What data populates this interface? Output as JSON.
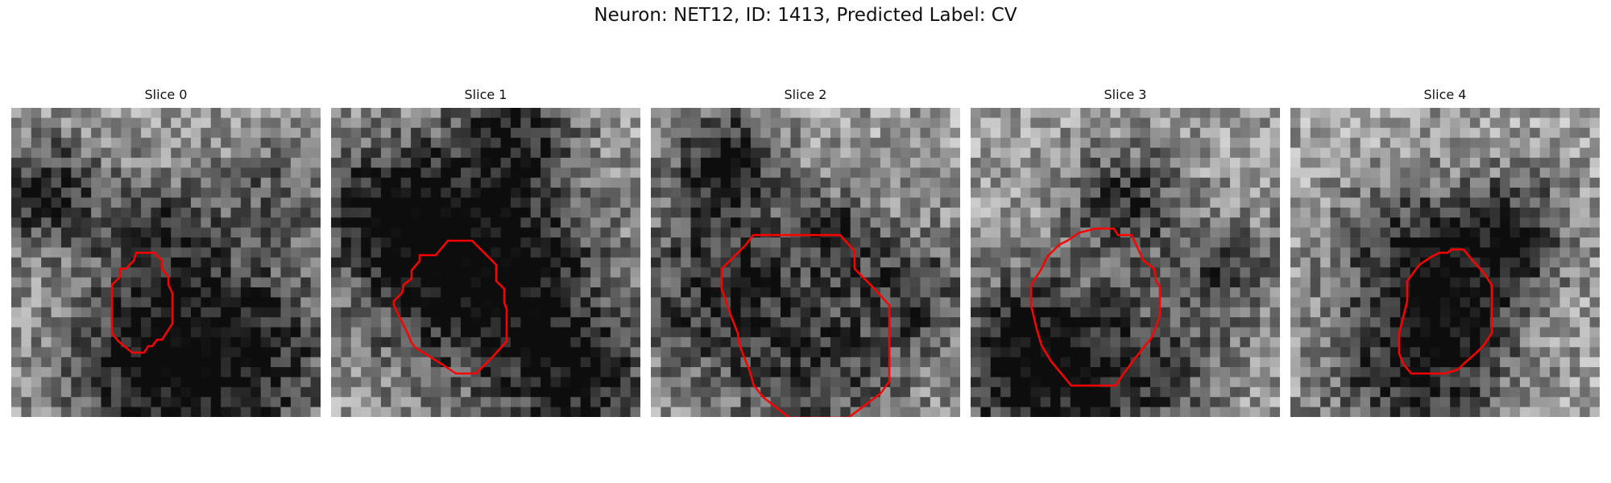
{
  "figure": {
    "title": "Neuron: NET12, ID: 1413, Predicted Label: CV",
    "outline_color": "#ff0000",
    "colormap": "grayscale",
    "axes_visible": false
  },
  "panels": [
    {
      "title": "Slice 0"
    },
    {
      "title": "Slice 1"
    },
    {
      "title": "Slice 2"
    },
    {
      "title": "Slice 3"
    },
    {
      "title": "Slice 4"
    }
  ]
}
